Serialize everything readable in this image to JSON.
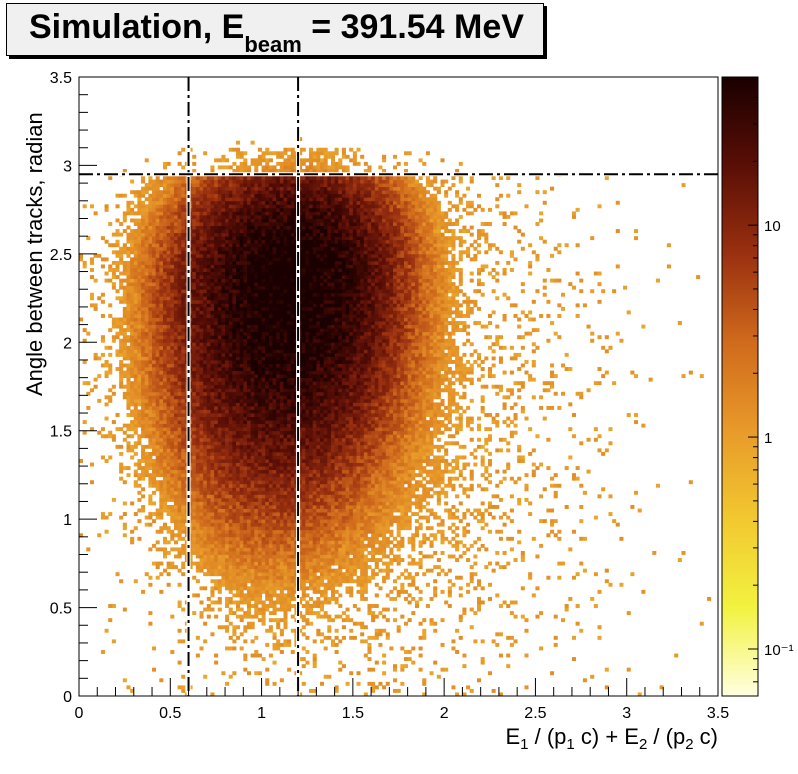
{
  "title": {
    "prefix": "Simulation, E",
    "subscript": "beam",
    "suffix": " = 391.54 MeV"
  },
  "chart_data": {
    "type": "heatmap",
    "xlabel_parts": [
      "E",
      "1",
      " / (p",
      "1",
      " c) + E",
      "2",
      " / (p",
      "2",
      " c)"
    ],
    "ylabel": "Angle between tracks, radian",
    "xlim": [
      0,
      3.5
    ],
    "ylim": [
      0,
      3.5
    ],
    "x_ticks": [
      "0",
      "0.5",
      "1",
      "1.5",
      "2",
      "2.5",
      "3",
      "3.5"
    ],
    "y_ticks": [
      "0",
      "0.5",
      "1",
      "1.5",
      "2",
      "2.5",
      "3",
      "3.5"
    ],
    "z_scale": "log",
    "z_range": [
      0.06,
      50
    ],
    "palette_ticks": [
      {
        "value": 10,
        "label": "10"
      },
      {
        "value": 1,
        "label": "1"
      },
      {
        "value": 0.1,
        "label": "10⁻¹"
      }
    ],
    "palette_colors": [
      "#ffffe0",
      "#f2f240",
      "#f2c830",
      "#e89a2a",
      "#d06a1c",
      "#9a3010",
      "#5a0e06",
      "#1a0000"
    ],
    "cut_lines": {
      "x": [
        0.6,
        1.2
      ],
      "y": [
        2.95
      ]
    },
    "clusters": [
      {
        "x": 1.0,
        "y": 2.3,
        "sx": 0.28,
        "sy": 0.55,
        "peak": 35
      },
      {
        "x": 1.28,
        "y": 2.42,
        "sx": 0.26,
        "sy": 0.5,
        "peak": 38
      }
    ],
    "grid": false
  }
}
